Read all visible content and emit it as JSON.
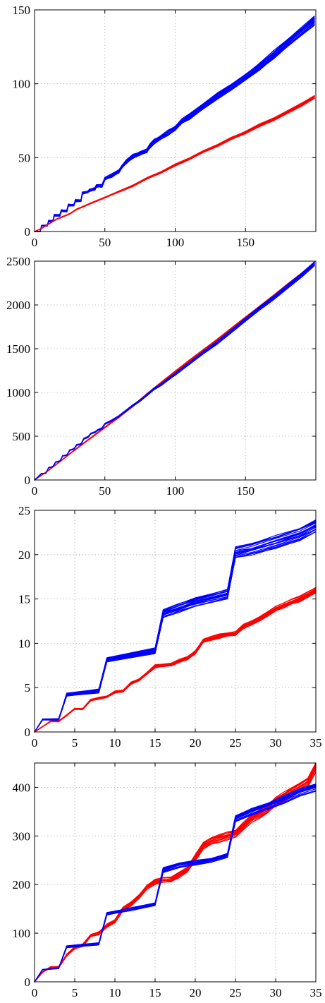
{
  "chart_data": [
    {
      "type": "line",
      "title": "",
      "xlabel": "",
      "ylabel": "",
      "xlim": [
        0,
        200
      ],
      "ylim": [
        0,
        150
      ],
      "xticks": [
        0,
        50,
        100,
        150
      ],
      "yticks": [
        0,
        50,
        100,
        150
      ],
      "xtick_labels": [
        "0",
        "50",
        "100",
        "150"
      ],
      "ytick_labels": [
        "0",
        "50",
        "100",
        "150"
      ],
      "grid": true,
      "legend": "none",
      "series": [
        {
          "color": "#0000ff",
          "bundle_count": 20,
          "bundle_spread": 0.028,
          "x": [
            0,
            4,
            5,
            9,
            10,
            13,
            14,
            18,
            19,
            23,
            24,
            28,
            29,
            33,
            34,
            38,
            39,
            43,
            44,
            48,
            50,
            55,
            60,
            62,
            65,
            70,
            75,
            80,
            82,
            85,
            90,
            95,
            100,
            105,
            110,
            120,
            130,
            140,
            150,
            160,
            170,
            180,
            190,
            199
          ],
          "values": [
            0,
            0,
            4,
            4,
            7,
            7,
            11,
            11,
            14,
            14,
            18,
            18,
            21,
            21,
            26,
            27,
            28,
            29,
            31,
            31,
            36,
            38,
            41,
            44,
            47,
            51,
            53,
            55,
            58,
            61,
            64,
            67,
            70,
            75,
            78,
            85,
            92,
            98,
            105,
            112,
            120,
            128,
            136,
            143
          ]
        },
        {
          "color": "#ff0000",
          "bundle_count": 20,
          "bundle_spread": 0.012,
          "x": [
            0,
            5,
            10,
            15,
            20,
            25,
            30,
            40,
            50,
            60,
            70,
            80,
            90,
            100,
            110,
            120,
            130,
            140,
            150,
            160,
            170,
            180,
            190,
            199
          ],
          "values": [
            0,
            2,
            5,
            8,
            10,
            12,
            15,
            19,
            23,
            27,
            31,
            36,
            40,
            45,
            49,
            54,
            58,
            63,
            67,
            72,
            76,
            81,
            86,
            91
          ]
        }
      ]
    },
    {
      "type": "line",
      "title": "",
      "xlabel": "",
      "ylabel": "",
      "xlim": [
        0,
        200
      ],
      "ylim": [
        0,
        2500
      ],
      "xticks": [
        0,
        50,
        100,
        150
      ],
      "yticks": [
        0,
        500,
        1000,
        1500,
        2000,
        2500
      ],
      "xtick_labels": [
        "0",
        "50",
        "100",
        "150"
      ],
      "ytick_labels": [
        "0",
        "500",
        "1000",
        "1500",
        "2000",
        "2500"
      ],
      "grid": true,
      "legend": "none",
      "series": [
        {
          "color": "#ff0000",
          "bundle_count": 16,
          "bundle_spread": 0.008,
          "x": [
            0,
            10,
            20,
            30,
            40,
            50,
            60,
            70,
            80,
            90,
            100,
            110,
            120,
            130,
            140,
            150,
            160,
            170,
            180,
            190,
            199
          ],
          "values": [
            0,
            110,
            235,
            360,
            480,
            600,
            720,
            845,
            980,
            1110,
            1235,
            1360,
            1480,
            1600,
            1725,
            1850,
            1975,
            2100,
            2225,
            2350,
            2470
          ]
        },
        {
          "color": "#0000ff",
          "bundle_count": 16,
          "bundle_spread": 0.01,
          "x": [
            0,
            5,
            8,
            10,
            13,
            15,
            18,
            20,
            23,
            25,
            28,
            30,
            33,
            35,
            38,
            40,
            43,
            45,
            48,
            50,
            55,
            60,
            65,
            70,
            75,
            80,
            85,
            90,
            95,
            100,
            110,
            120,
            130,
            140,
            150,
            160,
            170,
            180,
            190,
            199
          ],
          "values": [
            0,
            75,
            75,
            140,
            150,
            205,
            215,
            275,
            285,
            340,
            355,
            400,
            410,
            470,
            490,
            530,
            545,
            570,
            590,
            640,
            680,
            730,
            790,
            850,
            905,
            970,
            1040,
            1090,
            1150,
            1210,
            1330,
            1455,
            1570,
            1700,
            1830,
            1960,
            2080,
            2210,
            2340,
            2470
          ]
        }
      ]
    },
    {
      "type": "line",
      "title": "",
      "xlabel": "",
      "ylabel": "",
      "xlim": [
        0,
        35
      ],
      "ylim": [
        0,
        25
      ],
      "xticks": [
        0,
        5,
        10,
        15,
        20,
        25,
        30,
        35
      ],
      "yticks": [
        0,
        5,
        10,
        15,
        20,
        25
      ],
      "xtick_labels": [
        "0",
        "5",
        "10",
        "15",
        "20",
        "25",
        "30",
        "35"
      ],
      "ytick_labels": [
        "0",
        "5",
        "10",
        "15",
        "20",
        "25"
      ],
      "grid": true,
      "legend": "none",
      "series": [
        {
          "color": "#0000ff",
          "bundle_count": 20,
          "bundle_spread": 0.035,
          "x": [
            0,
            1,
            3,
            4,
            8,
            9,
            15,
            16,
            18,
            20,
            24,
            25,
            27,
            30,
            33,
            35
          ],
          "values": [
            0,
            1.4,
            1.4,
            4.2,
            4.6,
            8.1,
            9.1,
            13.3,
            14.0,
            14.6,
            15.5,
            20.2,
            20.6,
            21.4,
            22.3,
            23.2
          ]
        },
        {
          "color": "#ff0000",
          "bundle_count": 20,
          "bundle_spread": 0.02,
          "x": [
            0,
            1,
            2,
            3,
            4,
            5,
            6,
            7,
            8,
            9,
            10,
            11,
            12,
            13,
            14,
            15,
            16,
            17,
            18,
            19,
            20,
            21,
            22,
            23,
            24,
            25,
            26,
            27,
            28,
            29,
            30,
            31,
            32,
            33,
            34,
            35
          ],
          "values": [
            0,
            0.6,
            1.2,
            1.2,
            1.9,
            2.6,
            2.6,
            3.6,
            3.8,
            4.0,
            4.5,
            4.6,
            5.5,
            5.9,
            6.6,
            7.4,
            7.5,
            7.6,
            8.0,
            8.3,
            9.0,
            10.3,
            10.6,
            10.8,
            11.0,
            11.1,
            11.9,
            12.3,
            12.8,
            13.3,
            13.9,
            14.3,
            14.7,
            15.0,
            15.5,
            16.0
          ]
        }
      ]
    },
    {
      "type": "line",
      "title": "",
      "xlabel": "",
      "ylabel": "",
      "xlim": [
        0,
        35
      ],
      "ylim": [
        0,
        450
      ],
      "xticks": [
        0,
        5,
        10,
        15,
        20,
        25,
        30,
        35
      ],
      "yticks": [
        0,
        100,
        200,
        300,
        400
      ],
      "xtick_labels": [
        "0",
        "5",
        "10",
        "15",
        "20",
        "25",
        "30",
        "35"
      ],
      "ytick_labels": [
        "0",
        "100",
        "200",
        "300",
        "400"
      ],
      "grid": true,
      "legend": "none",
      "series": [
        {
          "color": "#ff0000",
          "bundle_count": 18,
          "bundle_spread": 0.025,
          "x": [
            0,
            1,
            2,
            3,
            4,
            5,
            6,
            7,
            8,
            9,
            10,
            11,
            12,
            13,
            14,
            15,
            16,
            17,
            18,
            19,
            20,
            21,
            22,
            23,
            24,
            25,
            26,
            27,
            28,
            29,
            30,
            31,
            32,
            33,
            34,
            35
          ],
          "values": [
            0,
            20,
            30,
            30,
            55,
            70,
            75,
            95,
            100,
            115,
            125,
            150,
            160,
            175,
            195,
            205,
            210,
            210,
            220,
            230,
            255,
            280,
            290,
            295,
            300,
            305,
            320,
            335,
            345,
            355,
            370,
            380,
            390,
            400,
            410,
            440
          ]
        },
        {
          "color": "#0000ff",
          "bundle_count": 18,
          "bundle_spread": 0.02,
          "x": [
            0,
            1,
            3,
            4,
            8,
            9,
            12,
            15,
            16,
            18,
            20,
            22,
            24,
            25,
            27,
            29,
            31,
            33,
            35
          ],
          "values": [
            0,
            25,
            28,
            72,
            78,
            140,
            150,
            160,
            230,
            240,
            245,
            250,
            260,
            335,
            350,
            362,
            375,
            390,
            400
          ]
        }
      ]
    }
  ]
}
